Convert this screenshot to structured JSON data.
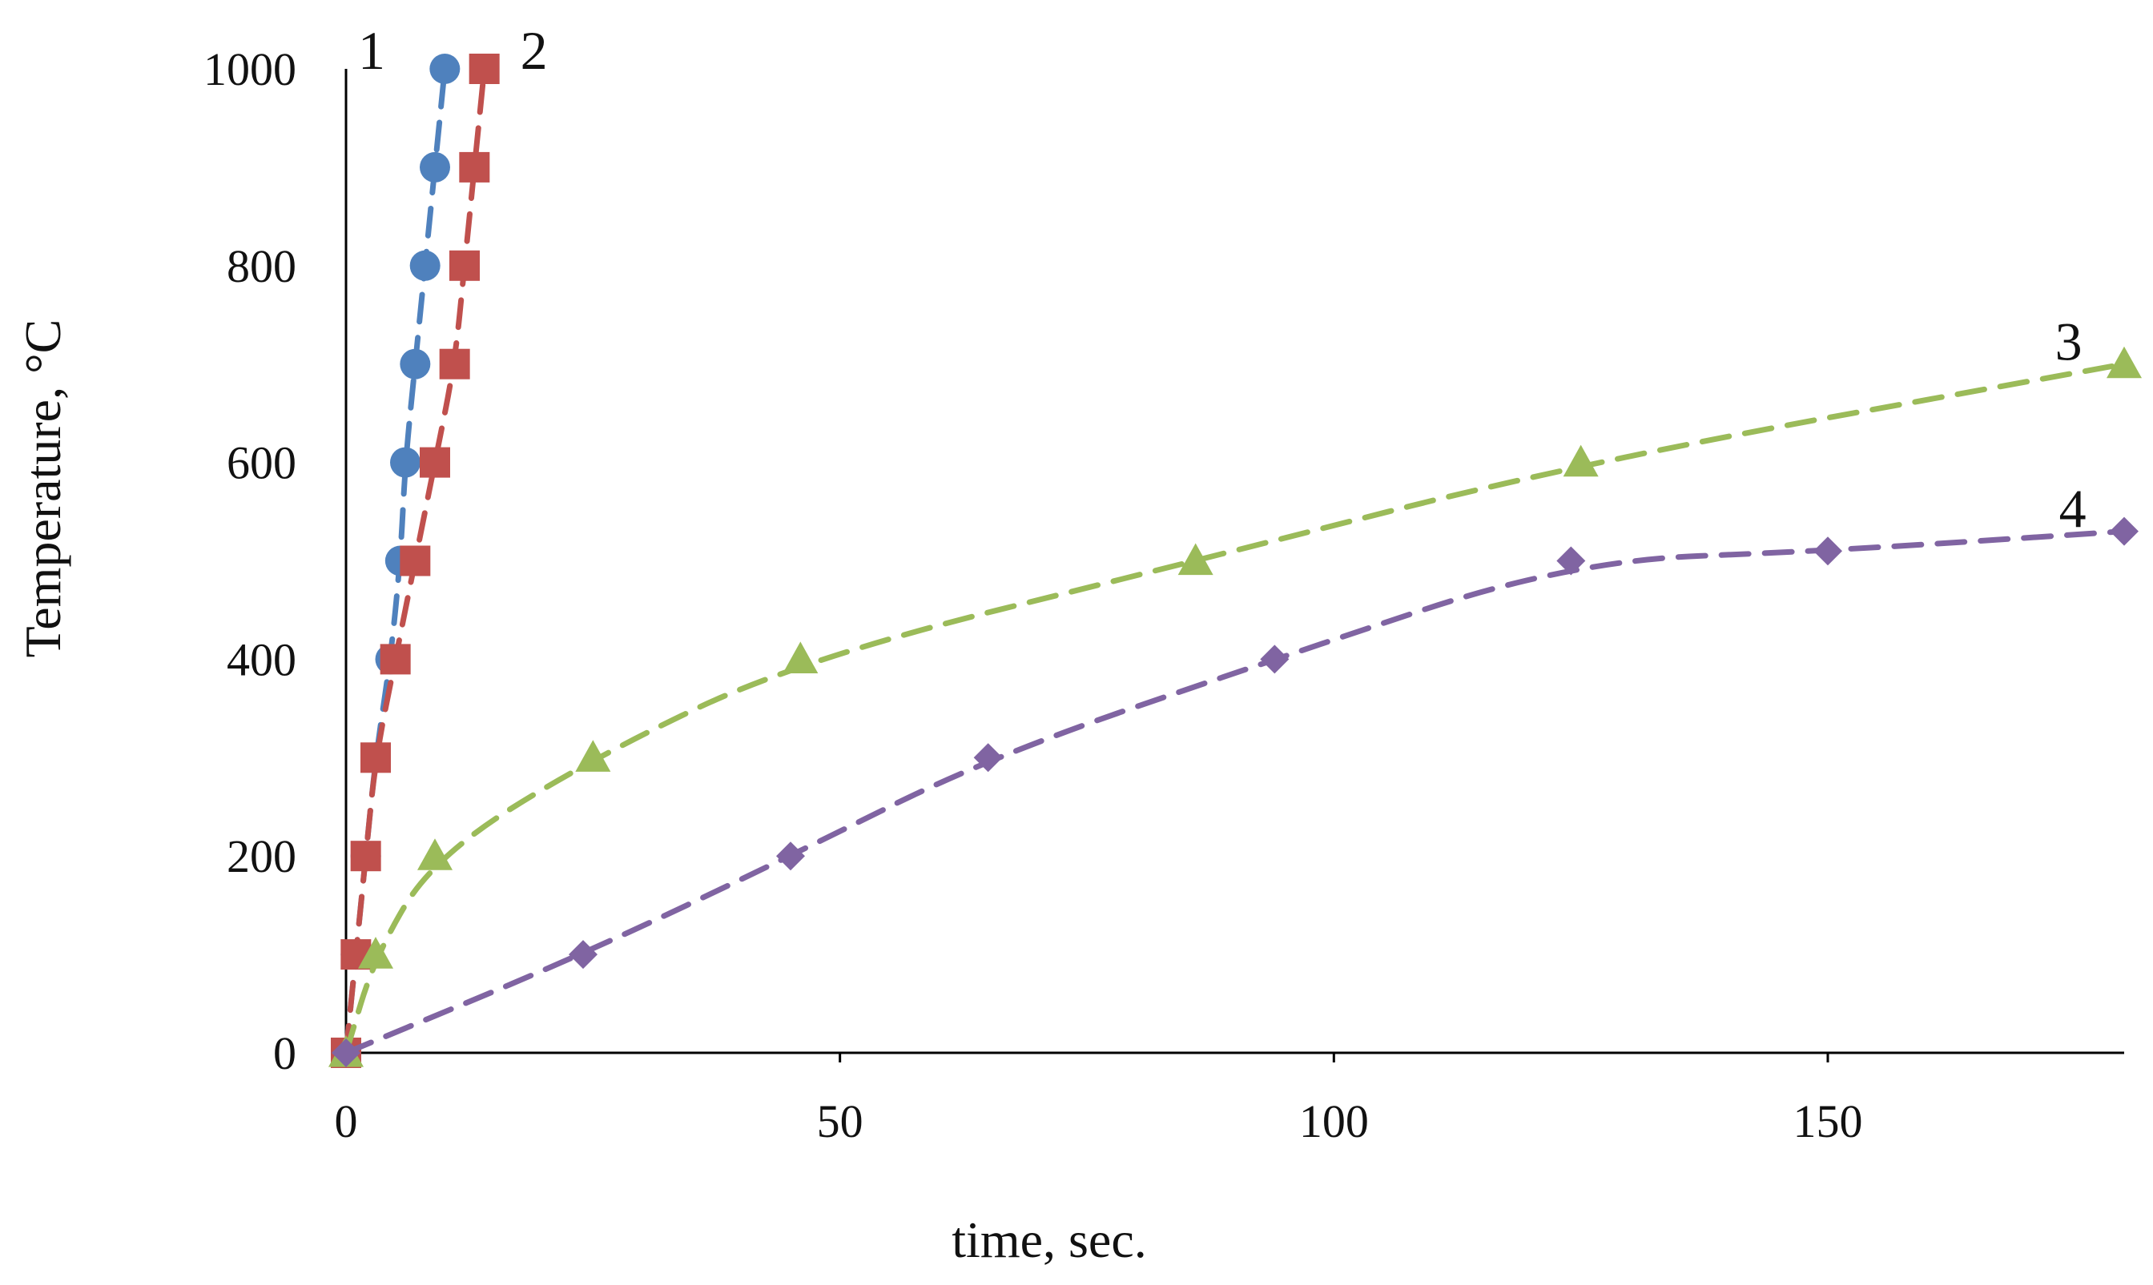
{
  "chart_data": {
    "type": "scatter",
    "title": "",
    "xlabel": "time, sec.",
    "ylabel": "Temperature, °C",
    "xlim": [
      0,
      180
    ],
    "ylim": [
      0,
      1000
    ],
    "xticks": [
      "0",
      "50",
      "100",
      "150"
    ],
    "yticks": [
      "0",
      "200",
      "400",
      "600",
      "800",
      "1000"
    ],
    "grid": false,
    "legend": "none",
    "series": [
      {
        "name": "1",
        "marker": "circle",
        "color": "#4f81bd",
        "x": [
          0,
          1,
          2,
          3,
          4.5,
          5.5,
          6,
          7,
          8,
          9,
          10
        ],
        "y": [
          0,
          100,
          200,
          300,
          400,
          500,
          600,
          700,
          800,
          900,
          1000
        ]
      },
      {
        "name": "2",
        "marker": "square",
        "color": "#c0504d",
        "x": [
          0,
          1,
          2,
          3,
          5,
          7,
          9,
          11,
          12,
          13,
          14
        ],
        "y": [
          0,
          100,
          200,
          300,
          400,
          500,
          600,
          700,
          800,
          900,
          1000
        ]
      },
      {
        "name": "3",
        "marker": "triangle",
        "color": "#9bbb59",
        "x": [
          0,
          3,
          9,
          25,
          46,
          86,
          125,
          180
        ],
        "y": [
          0,
          100,
          200,
          300,
          400,
          500,
          600,
          700
        ]
      },
      {
        "name": "4",
        "marker": "diamond",
        "color": "#8064a2",
        "x": [
          0,
          24,
          45,
          65,
          94,
          124,
          150,
          180
        ],
        "y": [
          0,
          100,
          200,
          300,
          400,
          500,
          510,
          530
        ]
      }
    ]
  }
}
